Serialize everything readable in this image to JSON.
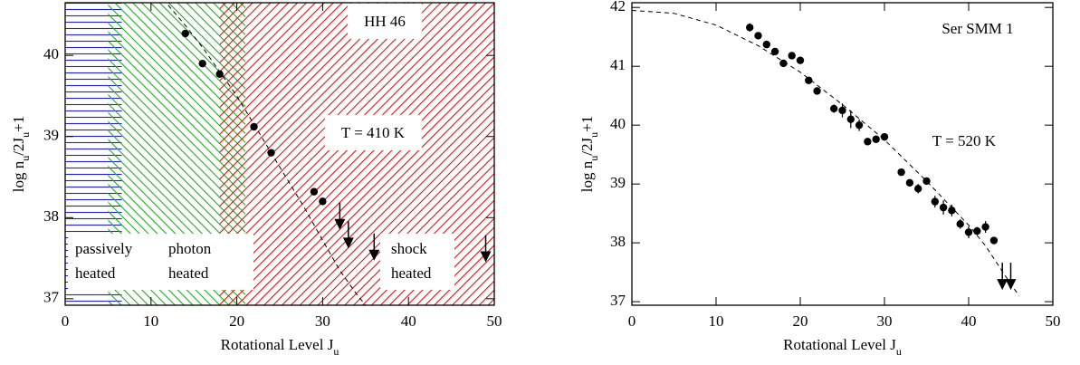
{
  "chart_data": [
    {
      "type": "scatter",
      "xlabel": [
        "Rotational Level J",
        "u"
      ],
      "ylabel": [
        "log  n",
        "u",
        "/2J",
        "u",
        "+1"
      ],
      "xlim": [
        0,
        50
      ],
      "ylim": [
        36.92,
        40.65
      ],
      "xticks": [
        0,
        10,
        20,
        30,
        40,
        50
      ],
      "yticks": [
        37,
        38,
        39,
        40
      ],
      "annotations": [
        "HH 46",
        "T = 410 K"
      ],
      "regions": [
        {
          "label": [
            "passively",
            "heated"
          ],
          "color": "#2222cc",
          "hatch": "horizontal",
          "x": [
            0,
            6.6
          ]
        },
        {
          "label": [
            "photon",
            "heated"
          ],
          "color": "#22aa22",
          "hatch": "diagonal-down",
          "x": [
            5,
            21
          ]
        },
        {
          "label": [
            "shock",
            "heated"
          ],
          "color": "#dd1111",
          "hatch": "diagonal-up",
          "x": [
            18,
            50
          ]
        }
      ],
      "points": {
        "x": [
          14,
          16,
          18,
          22,
          24,
          29,
          30
        ],
        "y": [
          40.27,
          39.9,
          39.77,
          39.12,
          38.8,
          38.32,
          38.2
        ]
      },
      "upper_limits": {
        "x": [
          32,
          33,
          36,
          49
        ],
        "y": [
          37.85,
          37.62,
          37.47,
          37.45
        ]
      },
      "fit": {
        "x": [
          12,
          14,
          16,
          18,
          20,
          22,
          24,
          26,
          28,
          30,
          32,
          34,
          35
        ],
        "y": [
          40.62,
          40.37,
          40.1,
          39.8,
          39.5,
          39.15,
          38.8,
          38.45,
          38.1,
          37.72,
          37.35,
          37.05,
          36.92
        ]
      }
    },
    {
      "type": "scatter",
      "xlabel": [
        "Rotational Level J",
        "u"
      ],
      "ylabel": [
        "log  n",
        "u",
        "/2J",
        "u",
        "+1"
      ],
      "xlim": [
        0,
        50
      ],
      "ylim": [
        36.94,
        42.08
      ],
      "xticks": [
        0,
        10,
        20,
        30,
        40,
        50
      ],
      "yticks": [
        37,
        38,
        39,
        40,
        41,
        42
      ],
      "annotations": [
        "Ser SMM 1",
        "T = 520 K"
      ],
      "regions": [],
      "points": {
        "x": [
          14,
          15,
          16,
          17,
          18,
          19,
          20,
          21,
          22,
          24,
          25,
          26,
          27,
          28,
          29,
          30,
          32,
          33,
          34,
          35,
          36,
          37,
          38,
          39,
          40,
          41,
          42,
          43
        ],
        "y": [
          41.66,
          41.52,
          41.37,
          41.25,
          41.05,
          41.18,
          41.1,
          40.76,
          40.58,
          40.28,
          40.25,
          40.1,
          40.0,
          39.72,
          39.76,
          39.8,
          39.2,
          39.02,
          38.92,
          39.05,
          38.7,
          38.6,
          38.55,
          38.32,
          38.18,
          38.2,
          38.27,
          38.04
        ],
        "errors": [
          0.07,
          0.05,
          0.05,
          0.05,
          0.05,
          0.05,
          0.05,
          0.05,
          0.05,
          0.07,
          0.12,
          0.15,
          0.1,
          0.05,
          0.05,
          0.05,
          0.05,
          0.06,
          0.08,
          0.05,
          0.1,
          0.12,
          0.1,
          0.08,
          0.1,
          0.07,
          0.1,
          0.05
        ]
      },
      "upper_limits": {
        "x": [
          44,
          45
        ],
        "y": [
          37.2,
          37.2
        ]
      },
      "fit": {
        "x": [
          0,
          5,
          10,
          15,
          20,
          25,
          30,
          35,
          40,
          42,
          45,
          46
        ],
        "y": [
          41.95,
          41.9,
          41.7,
          41.35,
          40.9,
          40.35,
          39.75,
          39.05,
          38.3,
          37.95,
          37.3,
          37.1
        ]
      }
    }
  ]
}
